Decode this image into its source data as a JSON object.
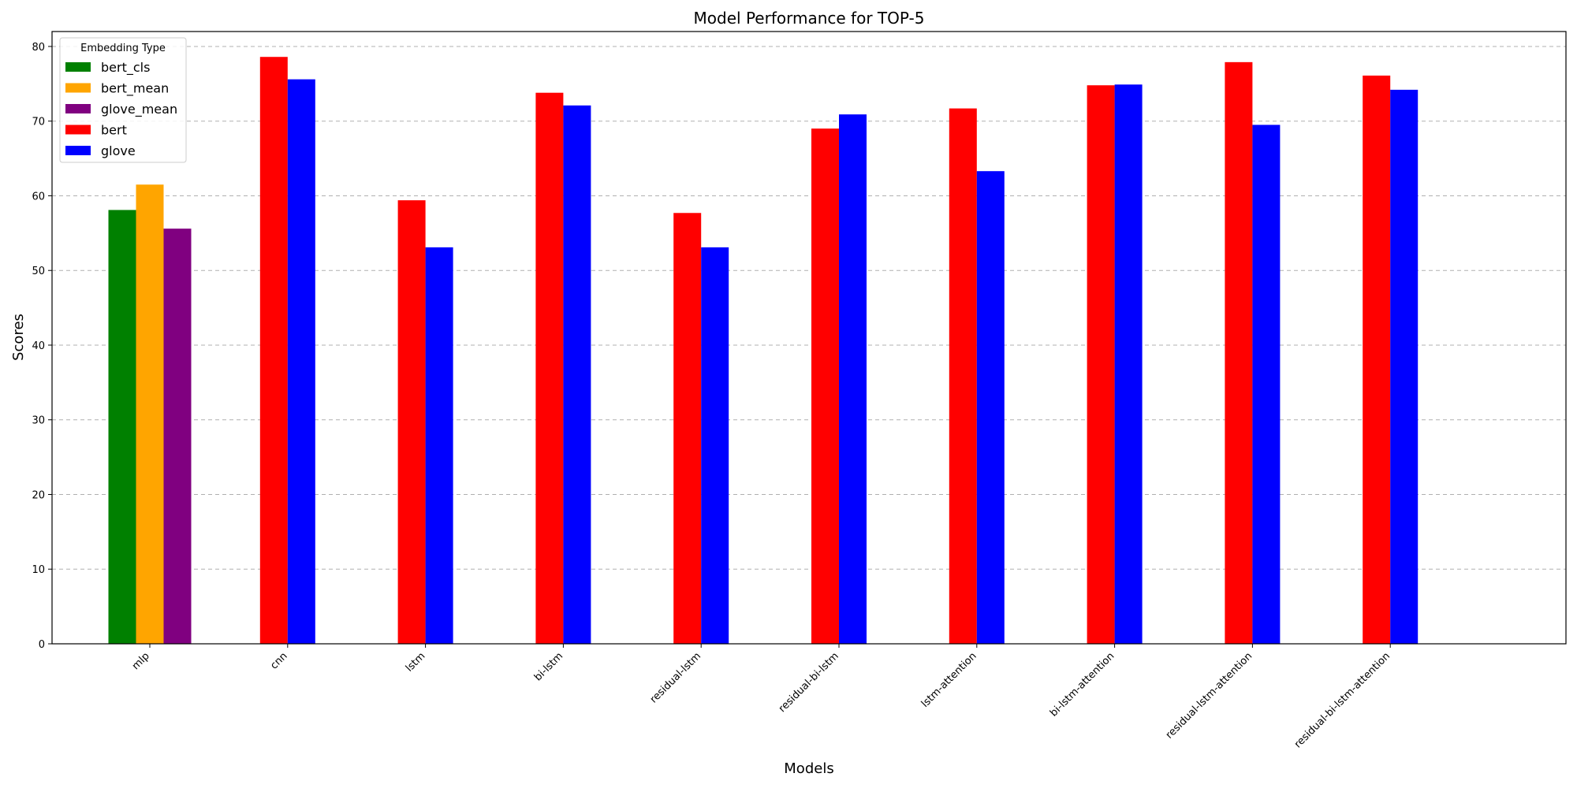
{
  "chart_data": {
    "type": "bar",
    "title": "Model Performance for TOP-5",
    "xlabel": "Models",
    "ylabel": "Scores",
    "ylim": [
      0,
      82
    ],
    "yticks": [
      0,
      10,
      20,
      30,
      40,
      50,
      60,
      70,
      80
    ],
    "grid": "y-dashed",
    "categories": [
      "mlp",
      "cnn",
      "lstm",
      "bi-lstm",
      "residual-lstm",
      "residual-bi-lstm",
      "lstm-attention",
      "bi-lstm-attention",
      "residual-lstm-attention",
      "residual-bi-lstm-attention"
    ],
    "legend": {
      "title": "Embedding Type",
      "placement": "top-left"
    },
    "series": [
      {
        "name": "bert_cls",
        "color": "#008000",
        "values": [
          58.1,
          null,
          null,
          null,
          null,
          null,
          null,
          null,
          null,
          null
        ]
      },
      {
        "name": "bert_mean",
        "color": "#ffa500",
        "values": [
          61.5,
          null,
          null,
          null,
          null,
          null,
          null,
          null,
          null,
          null
        ]
      },
      {
        "name": "glove_mean",
        "color": "#800080",
        "values": [
          55.6,
          null,
          null,
          null,
          null,
          null,
          null,
          null,
          null,
          null
        ]
      },
      {
        "name": "bert",
        "color": "#ff0000",
        "values": [
          null,
          78.6,
          59.4,
          73.8,
          57.7,
          69.0,
          71.7,
          74.8,
          77.9,
          76.1
        ]
      },
      {
        "name": "glove",
        "color": "#0000ff",
        "values": [
          null,
          75.6,
          53.1,
          72.1,
          53.1,
          70.9,
          63.3,
          74.9,
          69.5,
          74.2
        ]
      }
    ]
  }
}
